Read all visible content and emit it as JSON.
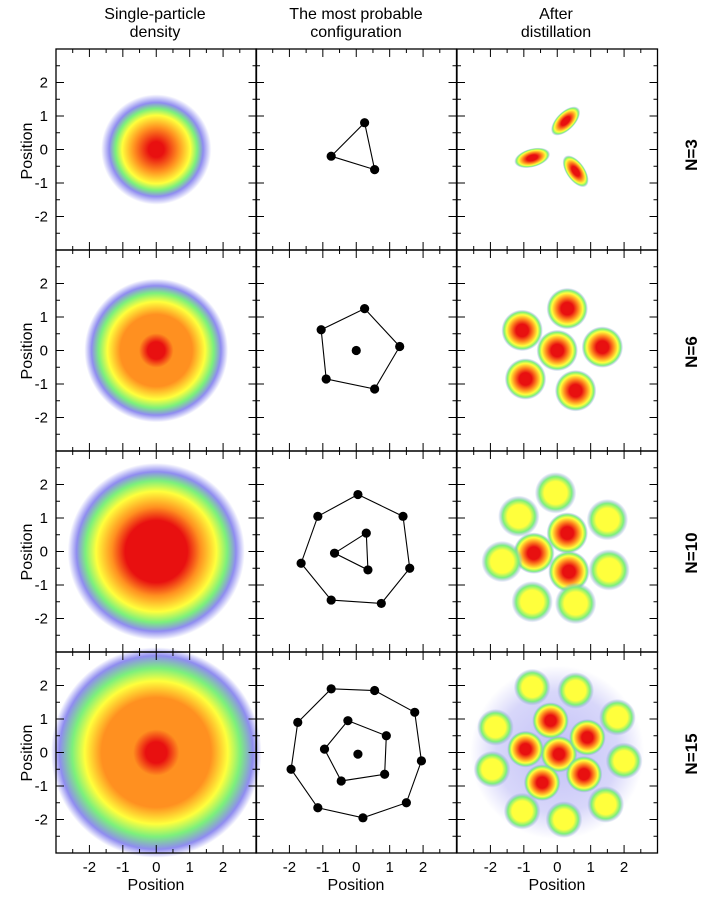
{
  "columns": [
    {
      "title_line1": "Single-particle",
      "title_line2": "density"
    },
    {
      "title_line1": "The most probable",
      "title_line2": "configuration"
    },
    {
      "title_line1": "After",
      "title_line2": "distillation"
    }
  ],
  "rows": [
    {
      "label": "N=3"
    },
    {
      "label": "N=6"
    },
    {
      "label": "N=10"
    },
    {
      "label": "N=15"
    }
  ],
  "axes": {
    "xlabel": "Position",
    "ylabel": "Position",
    "xlim": [
      -3,
      3
    ],
    "ylim": [
      -3,
      3
    ],
    "tick_labels": [
      "-2",
      "-1",
      "0",
      "1",
      "2"
    ]
  },
  "chart_data": {
    "type": "heatmap",
    "colormap": [
      "#ffffff",
      "#8f8cf0",
      "#7cf07c",
      "#ffff3c",
      "#ff9020",
      "#e81010"
    ],
    "density_panels": [
      {
        "row": "N=3",
        "shape": "ring-peak",
        "radius": 1.2,
        "peak_center": true
      },
      {
        "row": "N=6",
        "shape": "disk-peak",
        "radius": 1.7,
        "peak_center": true
      },
      {
        "row": "N=10",
        "shape": "ring-peak",
        "radius": 2.2,
        "peak_center": true
      },
      {
        "row": "N=15",
        "shape": "ring-peak",
        "radius": 2.7,
        "peak_center": true
      }
    ],
    "configurations": [
      {
        "row": "N=3",
        "points": [
          [
            0.25,
            0.8
          ],
          [
            -0.75,
            -0.2
          ],
          [
            0.55,
            -0.6
          ]
        ],
        "shells": [
          [
            0,
            1,
            2
          ]
        ]
      },
      {
        "row": "N=6",
        "points": [
          [
            0.0,
            0.0
          ],
          [
            0.25,
            1.25
          ],
          [
            -1.05,
            0.62
          ],
          [
            1.3,
            0.12
          ],
          [
            -0.9,
            -0.85
          ],
          [
            0.55,
            -1.15
          ]
        ],
        "shells": [
          [
            1,
            3,
            5,
            4,
            2
          ]
        ]
      },
      {
        "row": "N=10",
        "points": [
          [
            -0.65,
            -0.05
          ],
          [
            0.3,
            0.55
          ],
          [
            0.35,
            -0.55
          ],
          [
            0.05,
            1.7
          ],
          [
            1.4,
            1.05
          ],
          [
            1.6,
            -0.5
          ],
          [
            0.75,
            -1.55
          ],
          [
            -0.75,
            -1.45
          ],
          [
            -1.65,
            -0.35
          ],
          [
            -1.15,
            1.05
          ]
        ],
        "shells": [
          [
            0,
            1,
            2
          ],
          [
            3,
            4,
            5,
            6,
            7,
            8,
            9
          ]
        ]
      },
      {
        "row": "N=15",
        "points": [
          [
            0.05,
            -0.05
          ],
          [
            -0.95,
            0.1
          ],
          [
            -0.25,
            0.95
          ],
          [
            0.9,
            0.5
          ],
          [
            0.85,
            -0.65
          ],
          [
            -0.45,
            -0.85
          ],
          [
            -1.75,
            0.9
          ],
          [
            -0.75,
            1.9
          ],
          [
            0.55,
            1.85
          ],
          [
            1.75,
            1.2
          ],
          [
            1.95,
            -0.25
          ],
          [
            1.5,
            -1.5
          ],
          [
            0.2,
            -1.95
          ],
          [
            -1.15,
            -1.65
          ],
          [
            -1.95,
            -0.5
          ]
        ],
        "shells": [
          [
            1,
            2,
            3,
            4,
            5
          ],
          [
            6,
            7,
            8,
            9,
            10,
            11,
            12,
            13,
            14
          ]
        ]
      }
    ],
    "distilled": [
      {
        "row": "N=3",
        "peaks": [
          [
            0.25,
            0.85,
            "oval",
            45
          ],
          [
            -0.75,
            -0.25,
            "oval",
            15
          ],
          [
            0.55,
            -0.65,
            "oval",
            -55
          ]
        ]
      },
      {
        "row": "N=6",
        "peaks": [
          [
            0.0,
            0.0
          ],
          [
            0.3,
            1.25
          ],
          [
            -1.05,
            0.6
          ],
          [
            1.35,
            0.1
          ],
          [
            -0.95,
            -0.85
          ],
          [
            0.55,
            -1.2
          ]
        ]
      },
      {
        "row": "N=10",
        "peaks": [
          [
            -0.7,
            -0.05
          ],
          [
            0.3,
            0.55
          ],
          [
            0.35,
            -0.6
          ],
          [
            -0.05,
            1.75
          ],
          [
            1.5,
            0.95
          ],
          [
            1.55,
            -0.55
          ],
          [
            0.55,
            -1.55
          ],
          [
            -0.75,
            -1.5
          ],
          [
            -1.65,
            -0.3
          ],
          [
            -1.15,
            1.05
          ]
        ]
      },
      {
        "row": "N=15",
        "peaks": [
          [
            0.05,
            -0.05
          ],
          [
            -0.95,
            0.1
          ],
          [
            -0.2,
            0.95
          ],
          [
            0.9,
            0.45
          ],
          [
            0.8,
            -0.65
          ],
          [
            -0.45,
            -0.9
          ],
          [
            -1.85,
            0.75
          ],
          [
            -0.75,
            1.95
          ],
          [
            0.55,
            1.85
          ],
          [
            1.8,
            1.05
          ],
          [
            2.0,
            -0.25
          ],
          [
            1.45,
            -1.55
          ],
          [
            0.2,
            -2.0
          ],
          [
            -1.05,
            -1.75
          ],
          [
            -1.95,
            -0.5
          ]
        ]
      }
    ]
  }
}
